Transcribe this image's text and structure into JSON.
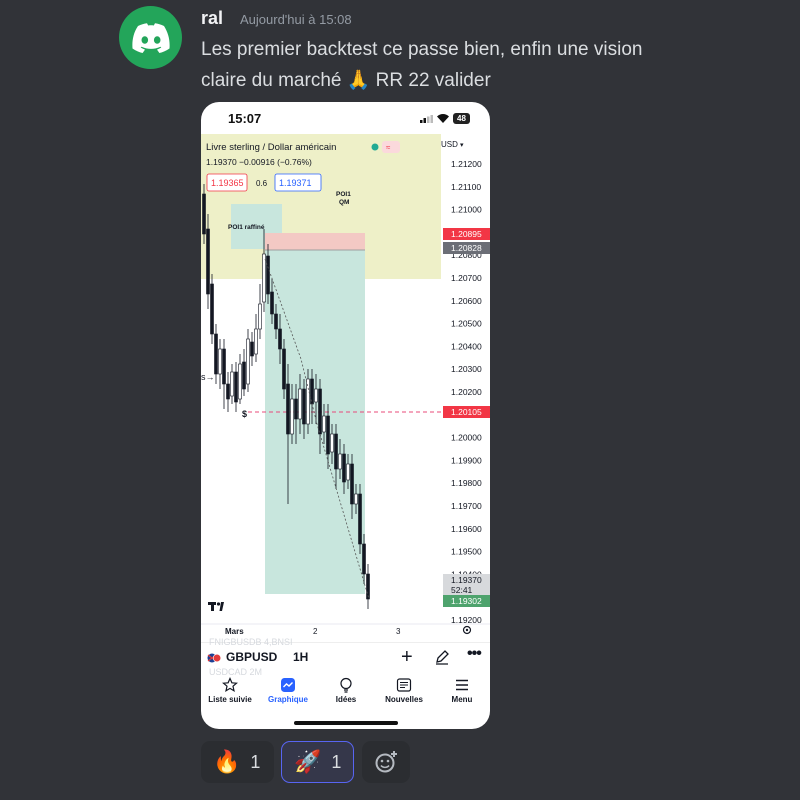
{
  "message": {
    "username": "ral",
    "timestamp": "Aujourd'hui à 15:08",
    "text_line1": "Les premier backtest ce passe bien, enfin une vision",
    "text_line2": "claire du marché 🙏 RR 22 valider",
    "avatar_icon": "discord-logo-icon",
    "avatar_color": "#23a55a"
  },
  "phone": {
    "status_time": "15:07",
    "battery": "48",
    "chart": {
      "pair_title": "Livre sterling / Dollar américain",
      "quote_line": "1.19370 −0.00916 (−0.76%)",
      "bid": "1.19365",
      "spread": "0.6",
      "ask": "1.19371",
      "currency": "USD",
      "poi_label_1": "POI1 raffiné",
      "poi_label_2a": "POI1",
      "poi_label_2b": "QM",
      "level_marker": "$",
      "arrow_marker": "s→",
      "logo": "TradingView",
      "time_labels": [
        "Mars",
        "2",
        "3"
      ],
      "price_ticks": [
        "1.21200",
        "1.21100",
        "1.21000",
        "1.20800",
        "1.20700",
        "1.20600",
        "1.20500",
        "1.20400",
        "1.20300",
        "1.20200",
        "1.20000",
        "1.19900",
        "1.19800",
        "1.19700",
        "1.19600",
        "1.19500",
        "1.19400",
        "1.19200"
      ],
      "badges": {
        "stop": "1.20895",
        "entry": "1.20828",
        "level": "1.20105",
        "current": "1.19370",
        "countdown": "52:41",
        "target": "1.19302"
      },
      "colors": {
        "bull": "#ffffff",
        "bear": "#131722",
        "stop_zone": "#f3c9c4",
        "target_zone": "#c8e6dd",
        "poi_zone": "#eef0c8",
        "level_line": "#e84b7a",
        "stop_badge": "#f23645",
        "target_badge": "#4ea36d",
        "entry_badge": "#6b6e76"
      }
    },
    "toolbar": {
      "symbol": "GBPUSD",
      "interval": "1H",
      "ghost_row_above": "FNIGBUSDB  4,BNSI",
      "ghost_row_below": "USDCAD  2M"
    },
    "tabs": [
      {
        "label": "Liste suivie",
        "icon": "star-icon"
      },
      {
        "label": "Graphique",
        "icon": "chart-icon"
      },
      {
        "label": "Idées",
        "icon": "lightbulb-icon"
      },
      {
        "label": "Nouvelles",
        "icon": "news-icon"
      },
      {
        "label": "Menu",
        "icon": "menu-icon"
      }
    ]
  },
  "reactions": [
    {
      "emoji": "🔥",
      "count": "1"
    },
    {
      "emoji": "🚀",
      "count": "1"
    }
  ],
  "add_reaction_icon": "add-emoji-icon"
}
